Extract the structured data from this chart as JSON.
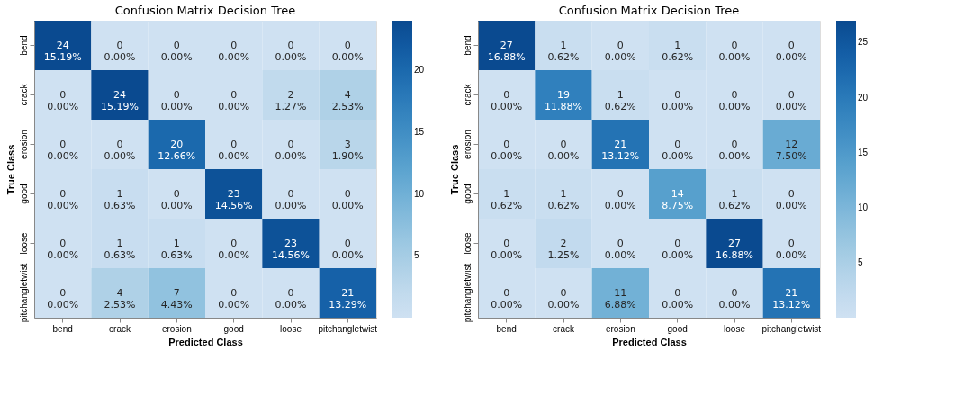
{
  "chart_data": [
    {
      "type": "heatmap",
      "title": "Confusion Matrix Decision Tree",
      "xlabel": "Predicted Class",
      "ylabel": "True Class",
      "categories": [
        "bend",
        "crack",
        "erosion",
        "good",
        "loose",
        "pitchangletwist"
      ],
      "y_categories": [
        "bend",
        "crack",
        "erosion",
        "good",
        "loose",
        "pitchangletwist"
      ],
      "cells": [
        [
          24,
          0,
          0,
          0,
          0,
          0
        ],
        [
          0,
          24,
          0,
          0,
          2,
          4
        ],
        [
          0,
          0,
          20,
          0,
          0,
          3
        ],
        [
          0,
          1,
          0,
          23,
          0,
          0
        ],
        [
          0,
          1,
          1,
          0,
          23,
          0
        ],
        [
          0,
          4,
          7,
          0,
          0,
          21
        ]
      ],
      "cell_labels": [
        [
          "24\n15.19%",
          "0\n0.00%",
          "0\n0.00%",
          "0\n0.00%",
          "0\n0.00%",
          "0\n0.00%"
        ],
        [
          "0\n0.00%",
          "24\n15.19%",
          "0\n0.00%",
          "0\n0.00%",
          "2\n1.27%",
          "4\n2.53%"
        ],
        [
          "0\n0.00%",
          "0\n0.00%",
          "20\n12.66%",
          "0\n0.00%",
          "0\n0.00%",
          "3\n1.90%"
        ],
        [
          "0\n0.00%",
          "1\n0.63%",
          "0\n0.00%",
          "23\n14.56%",
          "0\n0.00%",
          "0\n0.00%"
        ],
        [
          "0\n0.00%",
          "1\n0.63%",
          "1\n0.63%",
          "0\n0.00%",
          "23\n14.56%",
          "0\n0.00%"
        ],
        [
          "0\n0.00%",
          "4\n2.53%",
          "7\n4.43%",
          "0\n0.00%",
          "0\n0.00%",
          "21\n13.29%"
        ]
      ],
      "clim": [
        0,
        24
      ],
      "cticks": [
        5,
        10,
        15,
        20
      ]
    },
    {
      "type": "heatmap",
      "title": "Confusion Matrix Decision Tree",
      "xlabel": "Predicted Class",
      "ylabel": "True Class",
      "categories": [
        "bend",
        "crack",
        "erosion",
        "good",
        "loose",
        "pitchangletwist"
      ],
      "y_categories": [
        "bend",
        "crack",
        "erosion",
        "good",
        "loose",
        "pitchangletwist"
      ],
      "cells": [
        [
          27,
          1,
          0,
          1,
          0,
          0
        ],
        [
          0,
          19,
          1,
          0,
          0,
          0
        ],
        [
          0,
          0,
          21,
          0,
          0,
          12
        ],
        [
          1,
          1,
          0,
          14,
          1,
          0
        ],
        [
          0,
          2,
          0,
          0,
          27,
          0
        ],
        [
          0,
          0,
          11,
          0,
          0,
          21
        ]
      ],
      "cell_labels": [
        [
          "27\n16.88%",
          "1\n0.62%",
          "0\n0.00%",
          "1\n0.62%",
          "0\n0.00%",
          "0\n0.00%"
        ],
        [
          "0\n0.00%",
          "19\n11.88%",
          "1\n0.62%",
          "0\n0.00%",
          "0\n0.00%",
          "0\n0.00%"
        ],
        [
          "0\n0.00%",
          "0\n0.00%",
          "21\n13.12%",
          "0\n0.00%",
          "0\n0.00%",
          "12\n7.50%"
        ],
        [
          "1\n0.62%",
          "1\n0.62%",
          "0\n0.00%",
          "14\n8.75%",
          "1\n0.62%",
          "0\n0.00%"
        ],
        [
          "0\n0.00%",
          "2\n1.25%",
          "0\n0.00%",
          "0\n0.00%",
          "27\n16.88%",
          "0\n0.00%"
        ],
        [
          "0\n0.00%",
          "0\n0.00%",
          "11\n6.88%",
          "0\n0.00%",
          "0\n0.00%",
          "21\n13.12%"
        ]
      ],
      "clim": [
        0,
        27
      ],
      "cticks": [
        5,
        10,
        15,
        20,
        25
      ]
    }
  ]
}
